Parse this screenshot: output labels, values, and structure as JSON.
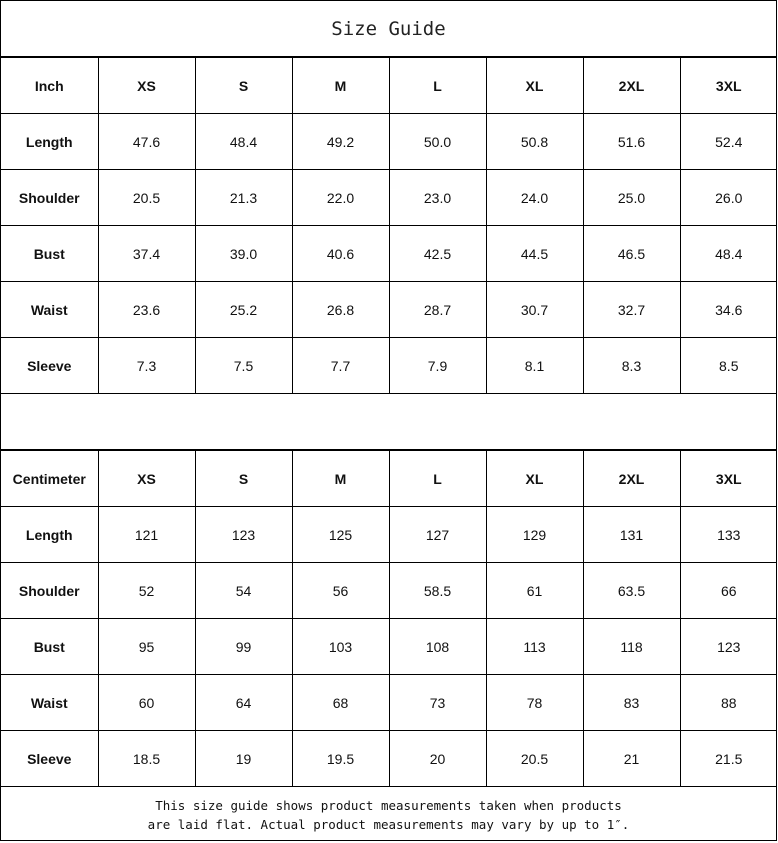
{
  "title": "Size Guide",
  "tables": [
    {
      "unit": "Inch",
      "sizes": [
        "XS",
        "S",
        "M",
        "L",
        "XL",
        "2XL",
        "3XL"
      ],
      "rows": [
        {
          "label": "Length",
          "values": [
            "47.6",
            "48.4",
            "49.2",
            "50.0",
            "50.8",
            "51.6",
            "52.4"
          ]
        },
        {
          "label": "Shoulder",
          "values": [
            "20.5",
            "21.3",
            "22.0",
            "23.0",
            "24.0",
            "25.0",
            "26.0"
          ]
        },
        {
          "label": "Bust",
          "values": [
            "37.4",
            "39.0",
            "40.6",
            "42.5",
            "44.5",
            "46.5",
            "48.4"
          ]
        },
        {
          "label": "Waist",
          "values": [
            "23.6",
            "25.2",
            "26.8",
            "28.7",
            "30.7",
            "32.7",
            "34.6"
          ]
        },
        {
          "label": "Sleeve",
          "values": [
            "7.3",
            "7.5",
            "7.7",
            "7.9",
            "8.1",
            "8.3",
            "8.5"
          ]
        }
      ]
    },
    {
      "unit": "Centimeter",
      "sizes": [
        "XS",
        "S",
        "M",
        "L",
        "XL",
        "2XL",
        "3XL"
      ],
      "rows": [
        {
          "label": "Length",
          "values": [
            "121",
            "123",
            "125",
            "127",
            "129",
            "131",
            "133"
          ]
        },
        {
          "label": "Shoulder",
          "values": [
            "52",
            "54",
            "56",
            "58.5",
            "61",
            "63.5",
            "66"
          ]
        },
        {
          "label": "Bust",
          "values": [
            "95",
            "99",
            "103",
            "108",
            "113",
            "118",
            "123"
          ]
        },
        {
          "label": "Waist",
          "values": [
            "60",
            "64",
            "68",
            "73",
            "78",
            "83",
            "88"
          ]
        },
        {
          "label": "Sleeve",
          "values": [
            "18.5",
            "19",
            "19.5",
            "20",
            "20.5",
            "21",
            "21.5"
          ]
        }
      ]
    }
  ],
  "note": {
    "line1": "This size guide shows product measurements taken when products",
    "line2": "are laid flat. Actual product measurements may vary by up to 1″."
  }
}
